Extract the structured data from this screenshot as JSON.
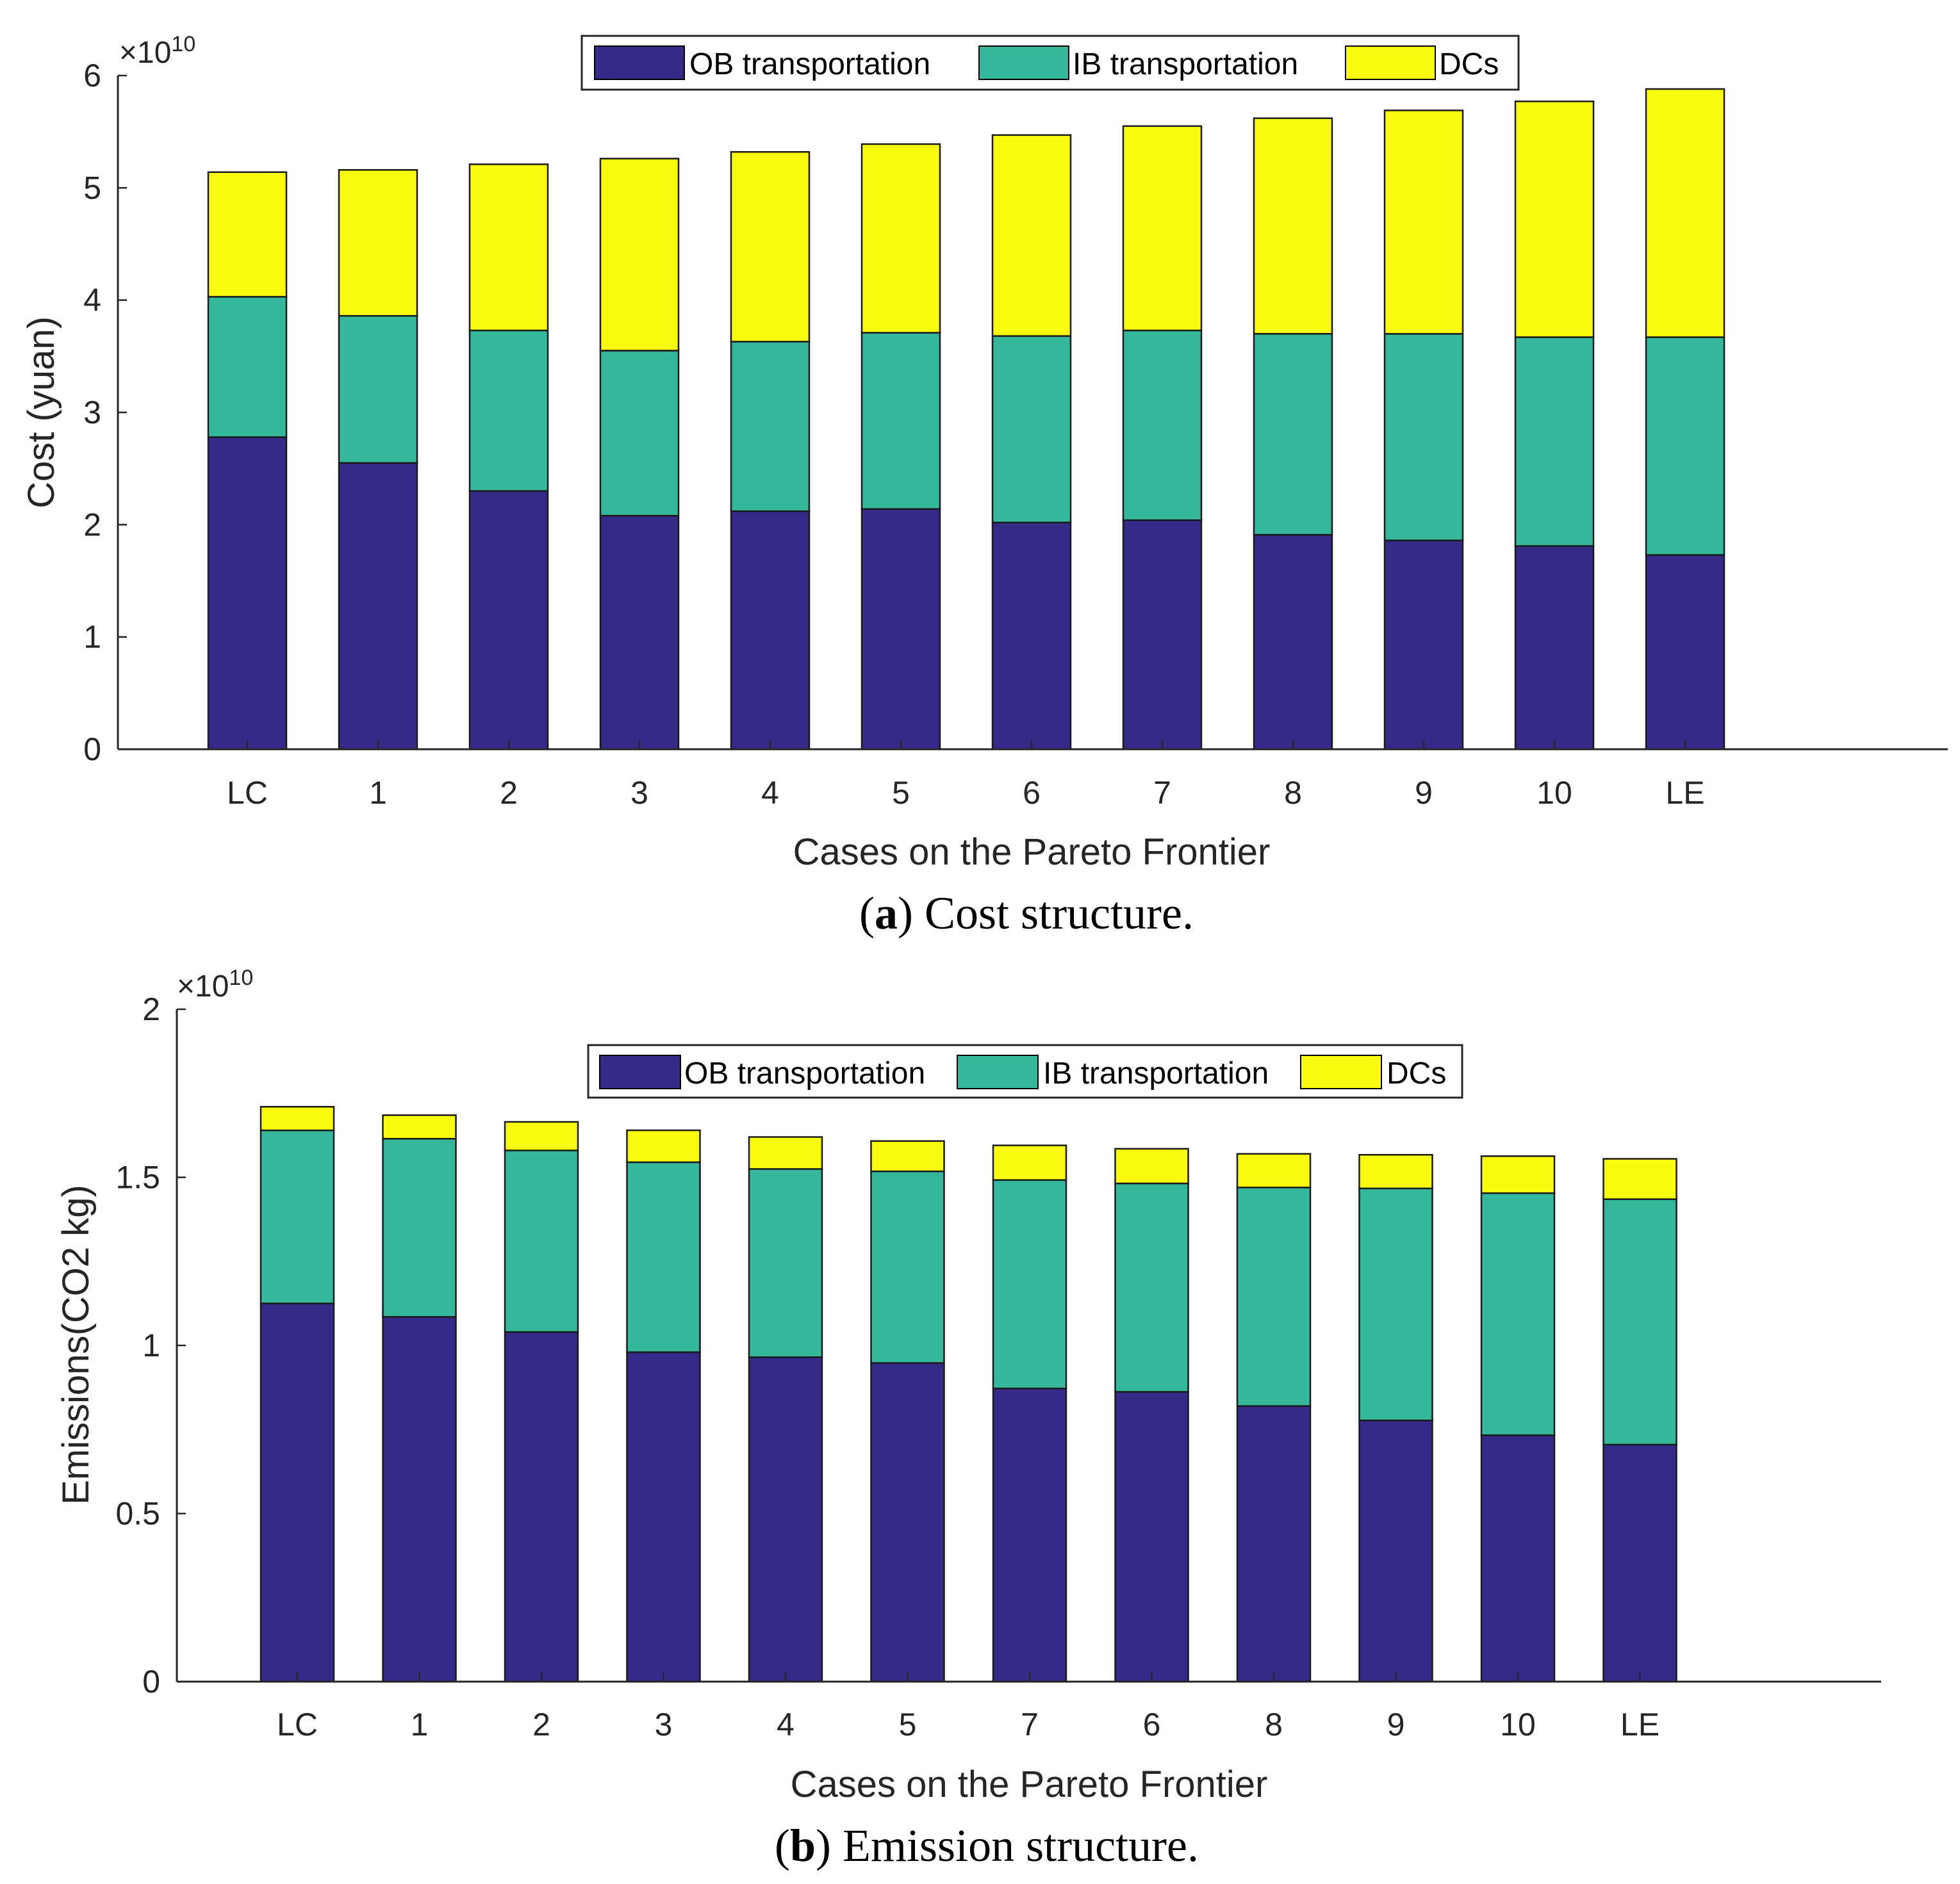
{
  "colors": {
    "ob": "#352a87",
    "ib": "#35b79b",
    "dcs": "#f9fb0e",
    "axis": "#262626",
    "background": "#ffffff"
  },
  "chart_data": [
    {
      "type": "bar",
      "stacked": true,
      "title": "",
      "xlabel": "Cases on the Pareto Frontier",
      "ylabel": "Cost (yuan)",
      "exponent_prefix": "×10",
      "exponent_power": "10",
      "ylim": [
        0,
        6
      ],
      "yticks": [
        "0",
        "1",
        "2",
        "3",
        "4",
        "5",
        "6"
      ],
      "categories": [
        "LC",
        "1",
        "2",
        "3",
        "4",
        "5",
        "6",
        "7",
        "8",
        "9",
        "10",
        "LE"
      ],
      "legend": "top",
      "series": [
        {
          "name": "OB transportation",
          "color_key": "ob",
          "values": [
            2.78,
            2.55,
            2.3,
            2.08,
            2.12,
            2.14,
            2.02,
            2.04,
            1.91,
            1.86,
            1.81,
            1.73
          ]
        },
        {
          "name": "IB transportation",
          "color_key": "ib",
          "values": [
            1.25,
            1.31,
            1.43,
            1.47,
            1.51,
            1.57,
            1.66,
            1.69,
            1.79,
            1.84,
            1.86,
            1.94
          ]
        },
        {
          "name": "DCs",
          "color_key": "dcs",
          "values": [
            1.11,
            1.3,
            1.48,
            1.71,
            1.69,
            1.68,
            1.79,
            1.82,
            1.92,
            1.99,
            2.1,
            2.21
          ]
        }
      ],
      "caption_label": "a",
      "caption_text": "Cost structure."
    },
    {
      "type": "bar",
      "stacked": true,
      "title": "",
      "xlabel": "Cases on the Pareto Frontier",
      "ylabel": "Emissions(CO2 kg)",
      "exponent_prefix": "×10",
      "exponent_power": "10",
      "ylim": [
        0,
        2
      ],
      "yticks": [
        "0",
        "0.5",
        "1",
        "1.5",
        "2"
      ],
      "categories": [
        "LC",
        "1",
        "2",
        "3",
        "4",
        "5",
        "7",
        "6",
        "8",
        "9",
        "10",
        "LE"
      ],
      "legend": "top",
      "series": [
        {
          "name": "OB transportation",
          "color_key": "ob",
          "values": [
            1.125,
            1.085,
            1.04,
            0.98,
            0.965,
            0.948,
            0.872,
            0.862,
            0.82,
            0.777,
            0.733,
            0.705
          ]
        },
        {
          "name": "IB transportation",
          "color_key": "ib",
          "values": [
            0.515,
            0.53,
            0.54,
            0.565,
            0.56,
            0.57,
            0.62,
            0.62,
            0.65,
            0.69,
            0.72,
            0.73
          ]
        },
        {
          "name": "DCs",
          "color_key": "dcs",
          "values": [
            0.07,
            0.07,
            0.085,
            0.095,
            0.095,
            0.09,
            0.103,
            0.103,
            0.1,
            0.1,
            0.11,
            0.12
          ]
        }
      ],
      "caption_label": "b",
      "caption_text": "Emission structure."
    }
  ]
}
